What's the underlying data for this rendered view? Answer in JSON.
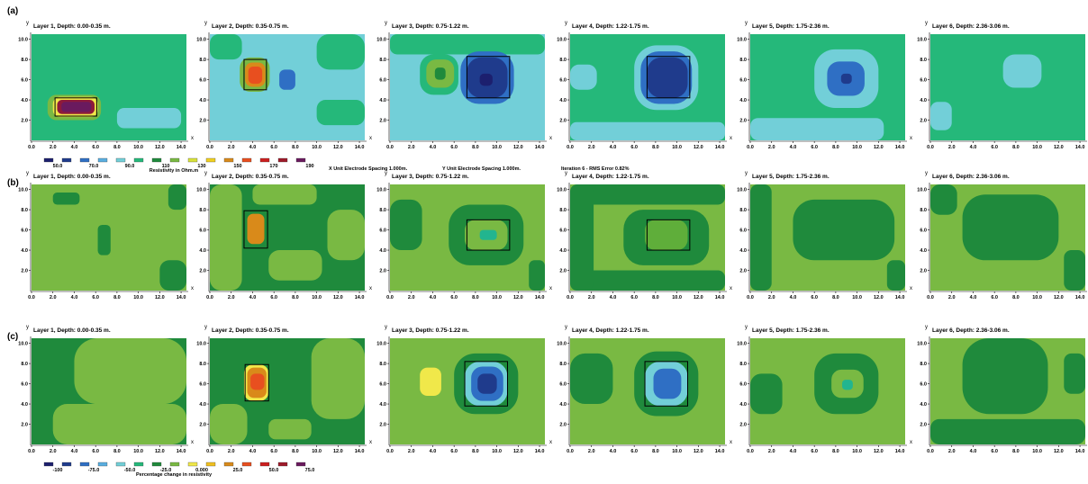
{
  "figure": {
    "rows": [
      {
        "label": "(a)",
        "kind": "resistivity"
      },
      {
        "label": "(b)",
        "kind": "change"
      },
      {
        "label": "(c)",
        "kind": "change"
      }
    ],
    "panel_titles": [
      "Layer 1, Depth: 0.00-0.35 m.",
      "Layer 2, Depth: 0.35-0.75 m.",
      "Layer 3, Depth: 0.75-1.22 m.",
      "Layer 4, Depth: 1.22-1.75 m.",
      "Layer 5, Depth: 1.75-2.36 m.",
      "Layer 6, Depth: 2.36-3.06 m."
    ],
    "y_axis_label": "y",
    "x_axis_label": "x",
    "info_line": {
      "x_spacing": "X Unit Electrode Spacing 1.000m.",
      "y_spacing": "Y Unit Electrode Spacing 1.000m.",
      "iteration": "Iteration 6 - RMS Error 0.82%"
    },
    "legend_resistivity": {
      "title": "Resistivity in Ohm.m",
      "labels": [
        "50.0",
        "70.0",
        "90.0",
        "110",
        "130",
        "150",
        "170",
        "190"
      ],
      "colors": [
        "#1c1f6e",
        "#1f3b8c",
        "#2f6fc4",
        "#5aaee0",
        "#72cfd8",
        "#25b87a",
        "#1f8a3c",
        "#79b943",
        "#d8e23a",
        "#f0d020",
        "#d98a1a",
        "#e84f1f",
        "#cc1f1f",
        "#9e1a2a",
        "#6a1a5e"
      ]
    },
    "legend_change": {
      "title": "Percentage change in resistivity",
      "labels": [
        "-100",
        "-75.0",
        "-50.0",
        "-25.0",
        "0.000",
        "25.0",
        "50.0",
        "75.0"
      ],
      "colors": [
        "#1c1f6e",
        "#1f3b8c",
        "#2f6fc4",
        "#5aaee0",
        "#72cfd8",
        "#25b87a",
        "#1f8a3c",
        "#79b943",
        "#f0e84a",
        "#f0c020",
        "#d98a1a",
        "#e84f1f",
        "#cc1f1f",
        "#9e1a2a",
        "#6a1a5e"
      ]
    }
  },
  "chart_data": {
    "type": "heatmap",
    "x_ticks": [
      "0.0",
      "2.0",
      "4.0",
      "6.0",
      "8.0",
      "10.0",
      "12.0",
      "14.0"
    ],
    "y_ticks": [
      "2.0",
      "4.0",
      "6.0",
      "8.0",
      "10.0"
    ],
    "xlim": [
      0,
      14.5
    ],
    "ylim": [
      0,
      10.5
    ],
    "colors": {
      "mint": "#25b87a",
      "cyan": "#72cfd8",
      "blue": "#2f6fc4",
      "navy": "#1f3b8c",
      "deep": "#1c1f6e",
      "dkgreen": "#1f8a3c",
      "ltgreen": "#79b943",
      "yellow": "#f0e84a",
      "orange": "#d98a1a",
      "red": "#e84f1f",
      "maroon": "#8e1a3a",
      "purple": "#6a1a5e",
      "midgreen": "#5fae3a",
      "teal": "#22b58f"
    },
    "panels": [
      [
        {
          "bg": "mint",
          "blobs": [
            {
              "c": "cyan",
              "x": 8.0,
              "y": 1.2,
              "w": 6.0,
              "h": 2.0
            },
            {
              "c": "ltgreen",
              "x": 1.5,
              "y": 2.0,
              "w": 5.0,
              "h": 2.5
            },
            {
              "c": "yellow",
              "x": 2.0,
              "y": 2.3,
              "w": 4.2,
              "h": 2.0
            },
            {
              "c": "maroon",
              "x": 2.4,
              "y": 2.6,
              "w": 3.5,
              "h": 1.4
            },
            {
              "c": "purple",
              "x": 2.8,
              "y": 2.8,
              "w": 2.8,
              "h": 1.0
            }
          ],
          "rect": [
            2.2,
            2.4,
            3.9,
            1.8
          ]
        },
        {
          "bg": "cyan",
          "blobs": [
            {
              "c": "mint",
              "x": 0.0,
              "y": 8.0,
              "w": 3.0,
              "h": 2.5
            },
            {
              "c": "mint",
              "x": 10.0,
              "y": 7.0,
              "w": 4.5,
              "h": 3.5
            },
            {
              "c": "mint",
              "x": 10.0,
              "y": 1.5,
              "w": 4.5,
              "h": 2.5
            },
            {
              "c": "ltgreen",
              "x": 2.8,
              "y": 4.8,
              "w": 2.8,
              "h": 3.4
            },
            {
              "c": "orange",
              "x": 3.3,
              "y": 5.3,
              "w": 1.9,
              "h": 2.4
            },
            {
              "c": "red",
              "x": 3.6,
              "y": 5.6,
              "w": 1.3,
              "h": 1.7
            },
            {
              "c": "blue",
              "x": 6.5,
              "y": 5.0,
              "w": 1.5,
              "h": 2.0
            }
          ],
          "rect": [
            3.2,
            5.0,
            2.1,
            3.0
          ]
        },
        {
          "bg": "cyan",
          "blobs": [
            {
              "c": "mint",
              "x": 0.0,
              "y": 8.5,
              "w": 14.5,
              "h": 2.0
            },
            {
              "c": "mint",
              "x": 2.8,
              "y": 4.5,
              "w": 3.6,
              "h": 4.0
            },
            {
              "c": "ltgreen",
              "x": 3.4,
              "y": 5.2,
              "w": 2.6,
              "h": 2.8
            },
            {
              "c": "dkgreen",
              "x": 4.2,
              "y": 6.0,
              "w": 1.0,
              "h": 1.2
            },
            {
              "c": "blue",
              "x": 6.6,
              "y": 3.6,
              "w": 5.0,
              "h": 5.2
            },
            {
              "c": "navy",
              "x": 7.2,
              "y": 4.2,
              "w": 3.8,
              "h": 4.0
            },
            {
              "c": "deep",
              "x": 8.4,
              "y": 5.4,
              "w": 1.2,
              "h": 1.2
            }
          ],
          "rect": [
            7.2,
            4.2,
            4.0,
            4.1
          ]
        },
        {
          "bg": "mint",
          "blobs": [
            {
              "c": "cyan",
              "x": 0.0,
              "y": 0.0,
              "w": 14.5,
              "h": 1.8
            },
            {
              "c": "cyan",
              "x": 0.0,
              "y": 5.0,
              "w": 2.5,
              "h": 2.5
            },
            {
              "c": "cyan",
              "x": 6.0,
              "y": 3.0,
              "w": 6.0,
              "h": 6.4
            },
            {
              "c": "blue",
              "x": 6.6,
              "y": 3.6,
              "w": 4.8,
              "h": 5.2
            },
            {
              "c": "navy",
              "x": 7.2,
              "y": 4.2,
              "w": 3.8,
              "h": 4.0
            }
          ],
          "rect": [
            7.2,
            4.2,
            4.0,
            4.1
          ]
        },
        {
          "bg": "mint",
          "blobs": [
            {
              "c": "cyan",
              "x": 0.0,
              "y": 0.0,
              "w": 12.5,
              "h": 2.2
            },
            {
              "c": "cyan",
              "x": 6.0,
              "y": 3.2,
              "w": 6.0,
              "h": 5.8
            },
            {
              "c": "blue",
              "x": 7.2,
              "y": 4.4,
              "w": 3.5,
              "h": 3.4
            },
            {
              "c": "navy",
              "x": 8.5,
              "y": 5.6,
              "w": 1.0,
              "h": 1.0
            }
          ],
          "rect": null
        },
        {
          "bg": "mint",
          "blobs": [
            {
              "c": "cyan",
              "x": 6.8,
              "y": 5.2,
              "w": 3.6,
              "h": 3.3
            },
            {
              "c": "cyan",
              "x": 0.0,
              "y": 1.0,
              "w": 2.0,
              "h": 2.8
            }
          ],
          "rect": null
        }
      ],
      [
        {
          "bg": "ltgreen",
          "blobs": [
            {
              "c": "dkgreen",
              "x": 6.2,
              "y": 3.5,
              "w": 1.2,
              "h": 3.0
            },
            {
              "c": "dkgreen",
              "x": 2.0,
              "y": 8.5,
              "w": 2.5,
              "h": 1.2
            },
            {
              "c": "dkgreen",
              "x": 12.0,
              "y": 0.0,
              "w": 2.5,
              "h": 3.0
            },
            {
              "c": "dkgreen",
              "x": 12.8,
              "y": 8.0,
              "w": 1.7,
              "h": 2.5
            }
          ],
          "rect": null
        },
        {
          "bg": "dkgreen",
          "blobs": [
            {
              "c": "ltgreen",
              "x": 0.0,
              "y": 0.0,
              "w": 3.0,
              "h": 10.5
            },
            {
              "c": "ltgreen",
              "x": 4.0,
              "y": 8.5,
              "w": 6.0,
              "h": 2.0
            },
            {
              "c": "ltgreen",
              "x": 5.5,
              "y": 1.0,
              "w": 5.0,
              "h": 3.0
            },
            {
              "c": "ltgreen",
              "x": 11.0,
              "y": 3.0,
              "w": 3.5,
              "h": 5.0
            },
            {
              "c": "orange",
              "x": 3.5,
              "y": 4.6,
              "w": 1.6,
              "h": 3.0
            }
          ],
          "rect": [
            3.2,
            4.2,
            2.2,
            3.7
          ]
        },
        {
          "bg": "ltgreen",
          "blobs": [
            {
              "c": "dkgreen",
              "x": 0.0,
              "y": 4.0,
              "w": 3.0,
              "h": 5.0
            },
            {
              "c": "dkgreen",
              "x": 5.5,
              "y": 2.5,
              "w": 7.0,
              "h": 6.0
            },
            {
              "c": "dkgreen",
              "x": 13.0,
              "y": 0.0,
              "w": 1.5,
              "h": 3.0
            },
            {
              "c": "ltgreen",
              "x": 7.0,
              "y": 4.0,
              "w": 4.0,
              "h": 3.0
            },
            {
              "c": "teal",
              "x": 8.4,
              "y": 5.0,
              "w": 1.6,
              "h": 1.0
            }
          ],
          "rect": [
            7.2,
            4.0,
            4.0,
            3.0
          ]
        },
        {
          "bg": "ltgreen",
          "blobs": [
            {
              "c": "dkgreen",
              "x": 0.0,
              "y": 0.0,
              "w": 14.5,
              "h": 2.0
            },
            {
              "c": "dkgreen",
              "x": 0.0,
              "y": 8.5,
              "w": 14.5,
              "h": 2.0
            },
            {
              "c": "dkgreen",
              "x": 0.0,
              "y": 0.0,
              "w": 2.2,
              "h": 10.5
            },
            {
              "c": "dkgreen",
              "x": 5.0,
              "y": 2.5,
              "w": 8.0,
              "h": 5.5
            },
            {
              "c": "midgreen",
              "x": 7.0,
              "y": 4.0,
              "w": 4.0,
              "h": 3.0
            }
          ],
          "rect": [
            7.2,
            4.0,
            4.0,
            3.0
          ]
        },
        {
          "bg": "ltgreen",
          "blobs": [
            {
              "c": "dkgreen",
              "x": 0.0,
              "y": 0.0,
              "w": 2.0,
              "h": 10.5
            },
            {
              "c": "dkgreen",
              "x": 4.0,
              "y": 3.0,
              "w": 9.5,
              "h": 6.0
            },
            {
              "c": "dkgreen",
              "x": 12.8,
              "y": 0.0,
              "w": 1.7,
              "h": 3.0
            }
          ],
          "rect": null
        },
        {
          "bg": "ltgreen",
          "blobs": [
            {
              "c": "dkgreen",
              "x": 0.0,
              "y": 7.5,
              "w": 2.5,
              "h": 3.0
            },
            {
              "c": "dkgreen",
              "x": 3.0,
              "y": 3.0,
              "w": 9.0,
              "h": 6.5
            },
            {
              "c": "dkgreen",
              "x": 12.5,
              "y": 0.0,
              "w": 2.0,
              "h": 4.0
            }
          ],
          "rect": null
        }
      ],
      [
        {
          "bg": "dkgreen",
          "blobs": [
            {
              "c": "ltgreen",
              "x": 2.0,
              "y": 0.0,
              "w": 12.5,
              "h": 4.0
            },
            {
              "c": "ltgreen",
              "x": 4.0,
              "y": 4.0,
              "w": 10.5,
              "h": 6.5
            }
          ],
          "rect": null
        },
        {
          "bg": "dkgreen",
          "blobs": [
            {
              "c": "ltgreen",
              "x": 0.0,
              "y": 0.0,
              "w": 3.5,
              "h": 4.0
            },
            {
              "c": "ltgreen",
              "x": 9.5,
              "y": 2.5,
              "w": 5.0,
              "h": 8.0
            },
            {
              "c": "ltgreen",
              "x": 5.5,
              "y": 0.5,
              "w": 4.0,
              "h": 2.0
            },
            {
              "c": "yellow",
              "x": 3.2,
              "y": 4.3,
              "w": 2.3,
              "h": 3.6
            },
            {
              "c": "orange",
              "x": 3.5,
              "y": 4.6,
              "w": 1.8,
              "h": 3.0
            },
            {
              "c": "red",
              "x": 3.8,
              "y": 5.4,
              "w": 1.3,
              "h": 1.6
            }
          ],
          "rect": [
            3.3,
            4.3,
            2.2,
            3.6
          ]
        },
        {
          "bg": "ltgreen",
          "blobs": [
            {
              "c": "dkgreen",
              "x": 6.0,
              "y": 3.0,
              "w": 6.0,
              "h": 6.0
            },
            {
              "c": "yellow",
              "x": 2.8,
              "y": 4.8,
              "w": 2.0,
              "h": 2.8
            },
            {
              "c": "cyan",
              "x": 7.0,
              "y": 3.8,
              "w": 4.0,
              "h": 4.4
            },
            {
              "c": "blue",
              "x": 7.6,
              "y": 4.3,
              "w": 3.0,
              "h": 3.4
            },
            {
              "c": "navy",
              "x": 8.2,
              "y": 5.0,
              "w": 1.8,
              "h": 2.0
            }
          ],
          "rect": [
            7.0,
            3.8,
            4.0,
            4.4
          ]
        },
        {
          "bg": "ltgreen",
          "blobs": [
            {
              "c": "dkgreen",
              "x": 0.0,
              "y": 4.0,
              "w": 4.0,
              "h": 5.0
            },
            {
              "c": "dkgreen",
              "x": 6.0,
              "y": 2.8,
              "w": 6.0,
              "h": 6.4
            },
            {
              "c": "cyan",
              "x": 7.0,
              "y": 3.8,
              "w": 4.0,
              "h": 4.4
            },
            {
              "c": "blue",
              "x": 7.8,
              "y": 4.5,
              "w": 2.6,
              "h": 3.0
            }
          ],
          "rect": [
            7.0,
            3.8,
            4.0,
            4.4
          ]
        },
        {
          "bg": "ltgreen",
          "blobs": [
            {
              "c": "dkgreen",
              "x": 0.0,
              "y": 3.0,
              "w": 3.0,
              "h": 4.0
            },
            {
              "c": "dkgreen",
              "x": 6.0,
              "y": 3.0,
              "w": 6.0,
              "h": 6.0
            },
            {
              "c": "ltgreen",
              "x": 7.6,
              "y": 4.6,
              "w": 3.0,
              "h": 2.8
            },
            {
              "c": "teal",
              "x": 8.6,
              "y": 5.4,
              "w": 1.0,
              "h": 1.0
            }
          ],
          "rect": null
        },
        {
          "bg": "ltgreen",
          "blobs": [
            {
              "c": "dkgreen",
              "x": 0.0,
              "y": 0.0,
              "w": 14.5,
              "h": 2.5
            },
            {
              "c": "dkgreen",
              "x": 3.0,
              "y": 3.0,
              "w": 8.0,
              "h": 7.5
            },
            {
              "c": "dkgreen",
              "x": 12.5,
              "y": 5.0,
              "w": 2.0,
              "h": 4.0
            }
          ],
          "rect": null
        }
      ]
    ]
  }
}
